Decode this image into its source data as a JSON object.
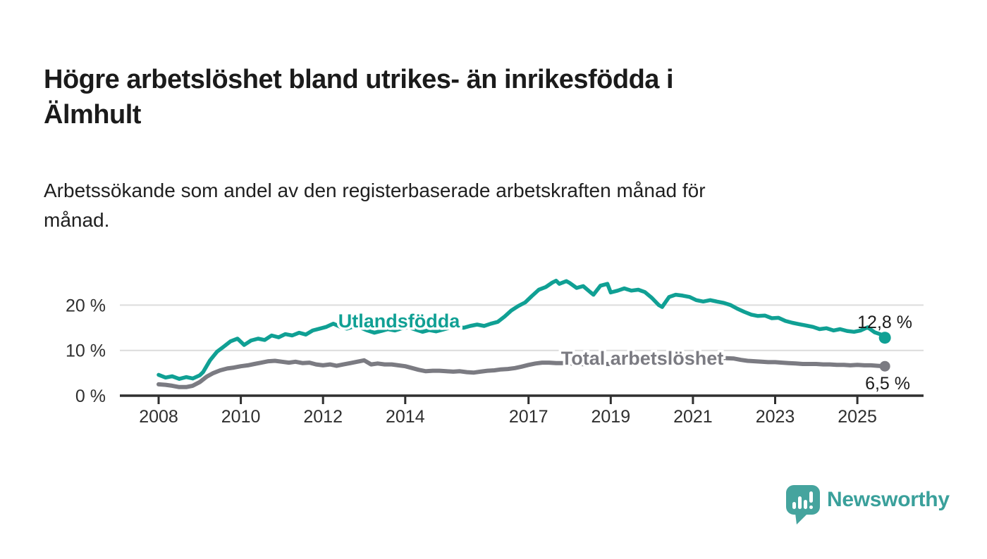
{
  "header": {
    "title_lines": [
      "Högre arbetslöshet bland utrikes- än inrikesfödda i",
      "Älmhult"
    ],
    "subtitle_lines": [
      "Arbetssökande som andel av den registerbaserade arbetskraften månad för",
      "månad."
    ]
  },
  "chart_data": {
    "type": "line",
    "title": "Högre arbetslöshet bland utrikes- än inrikesfödda i Älmhult",
    "subtitle": "Arbetssökande som andel av den registerbaserade arbetskraften månad för månad.",
    "unit": "%",
    "grid": "horizontal",
    "x_axis": {
      "ticks": [
        {
          "label": "2008",
          "year": 2008
        },
        {
          "label": "2010",
          "year": 2010
        },
        {
          "label": "2012",
          "year": 2012
        },
        {
          "label": "2014",
          "year": 2014
        },
        {
          "label": "2017",
          "year": 2017
        },
        {
          "label": "2019",
          "year": 2019
        },
        {
          "label": "2021",
          "year": 2021
        },
        {
          "label": "2023",
          "year": 2023
        },
        {
          "label": "2025",
          "year": 2025
        }
      ],
      "range": [
        2008,
        2025.75
      ]
    },
    "y_axis": {
      "ticks": [
        {
          "label": "0 %",
          "value": 0
        },
        {
          "label": "10 %",
          "value": 10
        },
        {
          "label": "20 %",
          "value": 20
        }
      ],
      "range": [
        0,
        27
      ]
    },
    "series": [
      {
        "name": "Utlandsfödda",
        "color": "#10a094",
        "end_label": "12,8 %",
        "end_value": 12.8,
        "points": [
          [
            2008.0,
            4.6
          ],
          [
            2008.17,
            4.0
          ],
          [
            2008.33,
            4.3
          ],
          [
            2008.5,
            3.7
          ],
          [
            2008.67,
            4.1
          ],
          [
            2008.83,
            3.8
          ],
          [
            2009.0,
            4.5
          ],
          [
            2009.08,
            5.2
          ],
          [
            2009.25,
            7.8
          ],
          [
            2009.42,
            9.7
          ],
          [
            2009.58,
            10.8
          ],
          [
            2009.75,
            12.0
          ],
          [
            2009.92,
            12.6
          ],
          [
            2010.08,
            11.2
          ],
          [
            2010.25,
            12.2
          ],
          [
            2010.42,
            12.6
          ],
          [
            2010.58,
            12.3
          ],
          [
            2010.75,
            13.3
          ],
          [
            2010.92,
            12.9
          ],
          [
            2011.08,
            13.6
          ],
          [
            2011.25,
            13.3
          ],
          [
            2011.42,
            13.9
          ],
          [
            2011.58,
            13.5
          ],
          [
            2011.75,
            14.4
          ],
          [
            2011.92,
            14.8
          ],
          [
            2012.08,
            15.2
          ],
          [
            2012.25,
            15.9
          ],
          [
            2012.42,
            15.2
          ],
          [
            2012.58,
            14.8
          ],
          [
            2012.75,
            15.3
          ],
          [
            2012.92,
            15.0
          ],
          [
            2013.08,
            14.4
          ],
          [
            2013.25,
            13.9
          ],
          [
            2013.42,
            14.3
          ],
          [
            2013.58,
            14.7
          ],
          [
            2013.75,
            14.4
          ],
          [
            2013.92,
            14.9
          ],
          [
            2014.08,
            15.1
          ],
          [
            2014.25,
            14.6
          ],
          [
            2014.42,
            14.1
          ],
          [
            2014.58,
            14.5
          ],
          [
            2014.75,
            14.2
          ],
          [
            2014.92,
            14.6
          ],
          [
            2015.08,
            15.0
          ],
          [
            2015.25,
            15.3
          ],
          [
            2015.42,
            15.0
          ],
          [
            2015.58,
            15.4
          ],
          [
            2015.75,
            15.7
          ],
          [
            2015.92,
            15.4
          ],
          [
            2016.08,
            15.9
          ],
          [
            2016.25,
            16.3
          ],
          [
            2016.42,
            17.5
          ],
          [
            2016.58,
            18.8
          ],
          [
            2016.75,
            19.8
          ],
          [
            2016.92,
            20.6
          ],
          [
            2017.08,
            22.0
          ],
          [
            2017.25,
            23.4
          ],
          [
            2017.42,
            24.0
          ],
          [
            2017.58,
            25.0
          ],
          [
            2017.67,
            25.4
          ],
          [
            2017.75,
            24.7
          ],
          [
            2017.92,
            25.3
          ],
          [
            2018.0,
            24.9
          ],
          [
            2018.17,
            23.8
          ],
          [
            2018.33,
            24.2
          ],
          [
            2018.5,
            22.9
          ],
          [
            2018.58,
            22.3
          ],
          [
            2018.75,
            24.3
          ],
          [
            2018.92,
            24.7
          ],
          [
            2019.0,
            22.8
          ],
          [
            2019.17,
            23.2
          ],
          [
            2019.33,
            23.7
          ],
          [
            2019.5,
            23.2
          ],
          [
            2019.67,
            23.4
          ],
          [
            2019.83,
            22.9
          ],
          [
            2020.0,
            21.6
          ],
          [
            2020.17,
            20.0
          ],
          [
            2020.25,
            19.6
          ],
          [
            2020.42,
            21.8
          ],
          [
            2020.58,
            22.3
          ],
          [
            2020.75,
            22.1
          ],
          [
            2020.92,
            21.8
          ],
          [
            2021.08,
            21.1
          ],
          [
            2021.25,
            20.8
          ],
          [
            2021.42,
            21.1
          ],
          [
            2021.58,
            20.8
          ],
          [
            2021.75,
            20.5
          ],
          [
            2021.92,
            20.0
          ],
          [
            2022.08,
            19.2
          ],
          [
            2022.25,
            18.5
          ],
          [
            2022.42,
            17.9
          ],
          [
            2022.58,
            17.6
          ],
          [
            2022.75,
            17.7
          ],
          [
            2022.92,
            17.1
          ],
          [
            2023.08,
            17.2
          ],
          [
            2023.25,
            16.5
          ],
          [
            2023.42,
            16.1
          ],
          [
            2023.58,
            15.8
          ],
          [
            2023.75,
            15.5
          ],
          [
            2023.92,
            15.2
          ],
          [
            2024.08,
            14.7
          ],
          [
            2024.25,
            14.9
          ],
          [
            2024.42,
            14.4
          ],
          [
            2024.58,
            14.7
          ],
          [
            2024.75,
            14.3
          ],
          [
            2024.92,
            14.1
          ],
          [
            2025.08,
            14.4
          ],
          [
            2025.25,
            15.1
          ],
          [
            2025.42,
            14.0
          ],
          [
            2025.58,
            13.5
          ],
          [
            2025.67,
            12.8
          ]
        ]
      },
      {
        "name": "Total arbetslöshet",
        "color": "#7b7b82",
        "end_label": "6,5 %",
        "end_value": 6.5,
        "points": [
          [
            2008.0,
            2.5
          ],
          [
            2008.17,
            2.4
          ],
          [
            2008.33,
            2.2
          ],
          [
            2008.5,
            1.9
          ],
          [
            2008.67,
            1.9
          ],
          [
            2008.83,
            2.2
          ],
          [
            2009.0,
            3.0
          ],
          [
            2009.17,
            4.2
          ],
          [
            2009.33,
            5.0
          ],
          [
            2009.5,
            5.6
          ],
          [
            2009.67,
            6.0
          ],
          [
            2009.83,
            6.2
          ],
          [
            2010.0,
            6.5
          ],
          [
            2010.17,
            6.7
          ],
          [
            2010.33,
            7.0
          ],
          [
            2010.5,
            7.3
          ],
          [
            2010.67,
            7.6
          ],
          [
            2010.83,
            7.7
          ],
          [
            2011.0,
            7.5
          ],
          [
            2011.17,
            7.3
          ],
          [
            2011.33,
            7.5
          ],
          [
            2011.5,
            7.2
          ],
          [
            2011.67,
            7.3
          ],
          [
            2011.83,
            6.9
          ],
          [
            2012.0,
            6.7
          ],
          [
            2012.17,
            6.9
          ],
          [
            2012.33,
            6.6
          ],
          [
            2012.5,
            6.9
          ],
          [
            2012.67,
            7.2
          ],
          [
            2012.83,
            7.5
          ],
          [
            2013.0,
            7.8
          ],
          [
            2013.17,
            6.9
          ],
          [
            2013.33,
            7.1
          ],
          [
            2013.5,
            6.9
          ],
          [
            2013.67,
            6.9
          ],
          [
            2013.83,
            6.7
          ],
          [
            2014.0,
            6.5
          ],
          [
            2014.17,
            6.1
          ],
          [
            2014.33,
            5.7
          ],
          [
            2014.5,
            5.4
          ],
          [
            2014.67,
            5.5
          ],
          [
            2014.83,
            5.5
          ],
          [
            2015.0,
            5.4
          ],
          [
            2015.17,
            5.3
          ],
          [
            2015.33,
            5.4
          ],
          [
            2015.5,
            5.2
          ],
          [
            2015.67,
            5.1
          ],
          [
            2015.83,
            5.3
          ],
          [
            2016.0,
            5.5
          ],
          [
            2016.17,
            5.6
          ],
          [
            2016.33,
            5.8
          ],
          [
            2016.5,
            5.9
          ],
          [
            2016.67,
            6.1
          ],
          [
            2016.83,
            6.4
          ],
          [
            2017.0,
            6.8
          ],
          [
            2017.17,
            7.1
          ],
          [
            2017.33,
            7.3
          ],
          [
            2017.5,
            7.3
          ],
          [
            2017.67,
            7.2
          ],
          [
            2017.83,
            7.2
          ],
          [
            2018.0,
            7.1
          ],
          [
            2018.25,
            7.0
          ],
          [
            2018.5,
            6.9
          ],
          [
            2018.75,
            7.0
          ],
          [
            2019.0,
            7.0
          ],
          [
            2019.25,
            7.1
          ],
          [
            2019.5,
            7.2
          ],
          [
            2019.75,
            7.4
          ],
          [
            2020.0,
            7.8
          ],
          [
            2020.25,
            8.6
          ],
          [
            2020.5,
            8.9
          ],
          [
            2020.75,
            8.8
          ],
          [
            2021.0,
            8.7
          ],
          [
            2021.25,
            8.5
          ],
          [
            2021.5,
            8.4
          ],
          [
            2021.75,
            8.3
          ],
          [
            2022.0,
            8.2
          ],
          [
            2022.17,
            7.9
          ],
          [
            2022.33,
            7.7
          ],
          [
            2022.5,
            7.6
          ],
          [
            2022.67,
            7.5
          ],
          [
            2022.83,
            7.4
          ],
          [
            2023.0,
            7.4
          ],
          [
            2023.17,
            7.3
          ],
          [
            2023.33,
            7.2
          ],
          [
            2023.5,
            7.1
          ],
          [
            2023.67,
            7.0
          ],
          [
            2023.83,
            7.0
          ],
          [
            2024.0,
            7.0
          ],
          [
            2024.17,
            6.9
          ],
          [
            2024.33,
            6.9
          ],
          [
            2024.5,
            6.8
          ],
          [
            2024.67,
            6.8
          ],
          [
            2024.83,
            6.7
          ],
          [
            2025.0,
            6.8
          ],
          [
            2025.17,
            6.7
          ],
          [
            2025.33,
            6.7
          ],
          [
            2025.5,
            6.6
          ],
          [
            2025.67,
            6.5
          ]
        ]
      }
    ],
    "colors": {
      "gridline": "#dcdcdc",
      "axis": "#2f2f2f",
      "tick_label": "#2f2f2f",
      "value_label": "#1b1b1b"
    }
  },
  "branding": {
    "logo_text": "Newsworthy",
    "logo_color": "#3aa09b",
    "logo_bubble_color": "#45a49e",
    "logo_icon": "newsworthy-bubble-chart-icon"
  }
}
